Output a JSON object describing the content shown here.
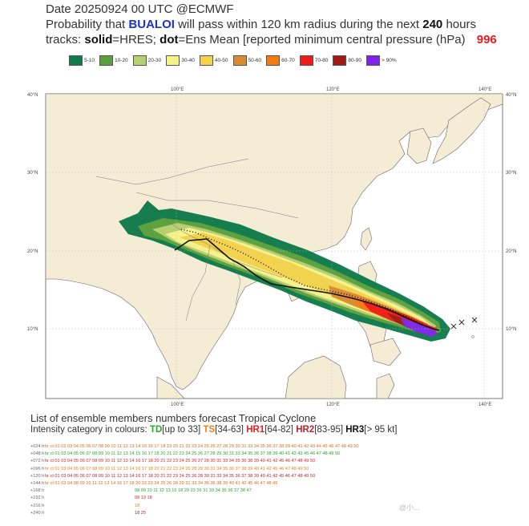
{
  "header": {
    "line1": "Date 20250924 00 UTC   @ECMWF",
    "line2_a": "Probability that",
    "storm_name": "BUALOI",
    "line2_b": "will pass within 120 km radius during the next",
    "hours": "240",
    "line2_c": "hours",
    "line3_a": "tracks:",
    "solid_word": "solid",
    "line3_b": "=HRES;",
    "dot_word": "dot",
    "line3_c": "=Ens Mean [reported minimum central pressure (hPa)",
    "pressure": "996"
  },
  "legend": [
    {
      "label": "5-10",
      "color": "#0f7a4a"
    },
    {
      "label": "10-20",
      "color": "#5aa03c"
    },
    {
      "label": "20-30",
      "color": "#b7cf6e"
    },
    {
      "label": "30-40",
      "color": "#f6f28a"
    },
    {
      "label": "40-50",
      "color": "#f2d24a"
    },
    {
      "label": "50-60",
      "color": "#d98a32"
    },
    {
      "label": "60-70",
      "color": "#f47a12"
    },
    {
      "label": "70-80",
      "color": "#ee1c16"
    },
    {
      "label": "80-90",
      "color": "#9e1a12"
    },
    {
      "label": "> 90%",
      "color": "#7c25e8"
    }
  ],
  "map": {
    "lon_ticks": [
      "100°E",
      "120°E",
      "140°E"
    ],
    "lat_ticks": [
      "40°N",
      "30°N",
      "20°N",
      "10°N"
    ],
    "land_color": "#f5ecd5",
    "sea_color": "#ffffff"
  },
  "list": {
    "title": "List of ensemble members numbers forecast Tropical Cyclone",
    "intensity_prefix": "Intensity category in colours:",
    "td": "TD",
    "td_range": "[up to 33]",
    "ts": "TS",
    "ts_range": "[34-63]",
    "hr1": "HR1",
    "hr1_range": "[64-82]",
    "hr2": "HR2",
    "hr2_range": "[83-95]",
    "hr3": "HR3",
    "hr3_range": "[> 95 kt]"
  },
  "member_rows": [
    {
      "lead": "+024 h",
      "text": "hr ct 01  02 03 04 05 06 07 08 09 10 11 12 13 14 15 16 17 18 19 20 21 22 23 24 25 26 27 28 29 30 31    33 34 35 36 37 38 39 40 41 42 43 44 45 46 47 48 49 50"
    },
    {
      "lead": "+048 h",
      "text": "hr ct 01  03 04 05 06 07 08 09 10 11 12 13 14 15 16 17 18    20 21 22 23 24 25 26 27 28 29 30 31    33 34 35 36 37 38 39 40 41 42 43    45 46 47 48 49 50"
    },
    {
      "lead": "+072 h",
      "text": "hr ct 01  03 04 05 06 07 08 09 10 11 12 13 14    16 17 18    20 21 22 23 24 25 26 27 28    30 31    33 34 35 36    38 39 40 41 42    45 46 47 48 49 50"
    },
    {
      "lead": "+096 h",
      "text": "hr ct 01  03 04 05 06 07 08 09 10 11 12 13 14    16 17 18    20 21 22 23 24    26    28 29 30 31       34 35 36 37 38 39 40 41 42    45 46 47 48 49 50"
    },
    {
      "lead": "+120 h",
      "text": "hr ct 01  03 04 05 06 07 08 09 10 11 12 13 14    16 17 18    20 21 22 23 24 25 26    28    30 31    33 34 35 36 37 38 39 40 41 42    45 46 47 48 49 50"
    },
    {
      "lead": "+144 h",
      "text": "hr ct 01  03 04    08 09 10 11 12 13 14    16 17 18    20    22 23 24 25 26    28 29    31    33 34 35 36    38 39 40 41 42    45 46 47 48 49"
    },
    {
      "lead": "+168 h",
      "text": "08 09 10 11 12 13    16    18    20    23    26       31    33 34 35 36 37 38    47"
    },
    {
      "lead": "+192 h",
      "text": "09    13    18"
    },
    {
      "lead": "+216 h",
      "text": "18"
    },
    {
      "lead": "+240 h",
      "text": "18    25"
    }
  ],
  "watermark": "@小..."
}
